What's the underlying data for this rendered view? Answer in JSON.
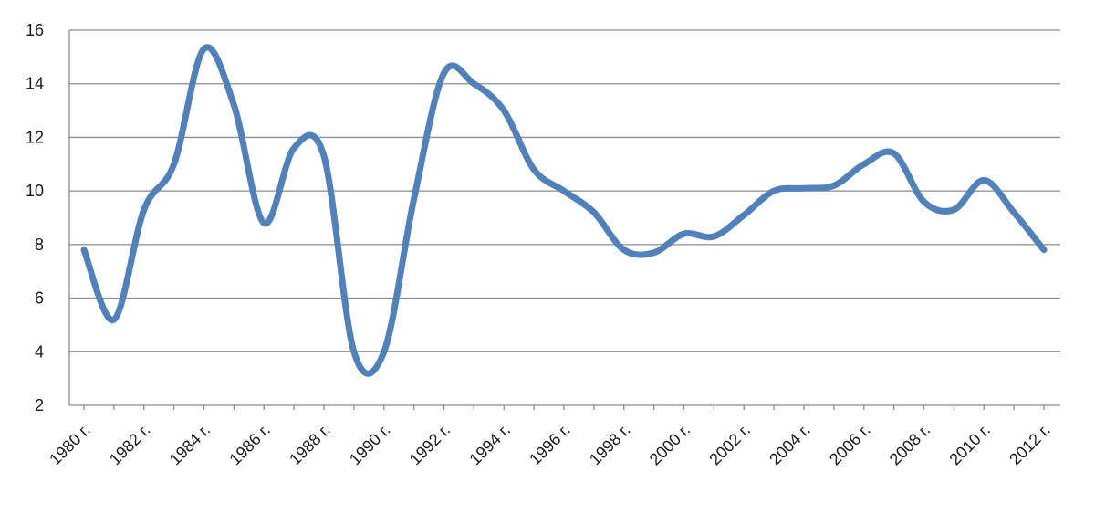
{
  "chart_data": {
    "type": "line",
    "title": "",
    "xlabel": "",
    "ylabel": "",
    "categories": [
      "1980 г.",
      "1981 г.",
      "1982 г.",
      "1983 г.",
      "1984 г.",
      "1985 г.",
      "1986 г.",
      "1987 г.",
      "1988 г.",
      "1989 г.",
      "1990 г.",
      "1991 г.",
      "1992 г.",
      "1993 г.",
      "1994 г.",
      "1995 г.",
      "1996 г.",
      "1997 г.",
      "1998 г.",
      "1999 г.",
      "2000 г.",
      "2001 г.",
      "2002 г.",
      "2003 г.",
      "2004 г.",
      "2005 г.",
      "2006 г.",
      "2007 г.",
      "2008 г.",
      "2009 г.",
      "2010 г.",
      "2011 г.",
      "2012 г."
    ],
    "x_tick_labels": [
      "1980 г.",
      "1982 г.",
      "1984 г.",
      "1986 г.",
      "1988 г.",
      "1990 г.",
      "1992 г.",
      "1994 г.",
      "1996 г.",
      "1998 г.",
      "2000 г.",
      "2002 г.",
      "2004 г.",
      "2006 г.",
      "2008 г.",
      "2010 г.",
      "2012 г."
    ],
    "series": [
      {
        "color": "#4f81bd",
        "values": [
          7.8,
          5.2,
          9.3,
          11.0,
          15.3,
          13.2,
          8.8,
          11.6,
          11.3,
          4.0,
          4.0,
          9.7,
          14.4,
          14.0,
          13.0,
          10.8,
          10.0,
          9.2,
          7.8,
          7.7,
          8.4,
          8.3,
          9.1,
          10.0,
          10.1,
          10.2,
          11.0,
          11.4,
          9.6,
          9.3,
          10.4,
          9.2,
          7.8
        ]
      }
    ],
    "y_ticks": [
      2,
      4,
      6,
      8,
      10,
      12,
      14,
      16
    ],
    "ylim": [
      2,
      16
    ],
    "grid": true,
    "legend": "none"
  }
}
